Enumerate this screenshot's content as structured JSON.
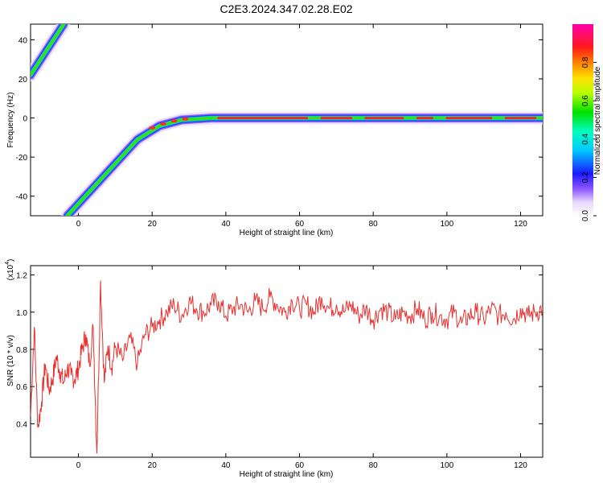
{
  "chart_data": [
    {
      "type": "heatmap",
      "title": "C2E3.2024.347.02.28.E02",
      "xlabel": "Height of straight line (km)",
      "ylabel": "Frequency (Hz)",
      "xlim": [
        -13,
        126
      ],
      "ylim": [
        -50,
        48
      ],
      "x_ticks": [
        "0",
        "20",
        "40",
        "60",
        "80",
        "100",
        "120"
      ],
      "y_ticks": [
        "-40",
        "-20",
        "0",
        "20",
        "40"
      ],
      "colorbar": {
        "label": "Normalized spectral amplitude",
        "range": [
          0,
          1
        ],
        "ticks": [
          "0.0",
          "0.2",
          "0.4",
          "0.6",
          "0.8"
        ]
      },
      "ridges": [
        {
          "name": "",
          "points": [
            [
              -13,
              22
            ],
            [
              -4,
              48
            ]
          ]
        },
        {
          "name": "",
          "points": [
            [
              -3,
              -50
            ],
            [
              16,
              -11
            ],
            [
              22,
              -4
            ],
            [
              28,
              -1
            ],
            [
              36,
              0
            ],
            [
              126,
              0
            ]
          ]
        }
      ]
    },
    {
      "type": "line",
      "xlabel": "Height of straight line (km)",
      "ylabel": "SNR (10 * v/v)",
      "exponent_label": "(x10",
      "exponent_sup": "4",
      "exponent_close": ")",
      "xlim": [
        -13,
        126
      ],
      "ylim": [
        0.22,
        1.25
      ],
      "x_ticks": [
        "0",
        "20",
        "40",
        "60",
        "80",
        "100",
        "120"
      ],
      "y_ticks": [
        "0.4",
        "0.6",
        "0.8",
        "1.0",
        "1.2"
      ],
      "color": "#e8302f",
      "x": [
        -13,
        -12,
        -11,
        -10,
        -9,
        -8,
        -7,
        -6,
        -5,
        -4,
        -3,
        -2,
        -1,
        0,
        1,
        2,
        3,
        4,
        5,
        6,
        7,
        8,
        9,
        10,
        12,
        14,
        16,
        18,
        20,
        22,
        24,
        26,
        28,
        30,
        32,
        34,
        36,
        38,
        40,
        42,
        44,
        46,
        48,
        50,
        52,
        54,
        56,
        58,
        60,
        62,
        64,
        66,
        68,
        70,
        72,
        74,
        76,
        78,
        80,
        82,
        84,
        86,
        88,
        90,
        92,
        94,
        96,
        98,
        100,
        102,
        104,
        106,
        108,
        110,
        112,
        114,
        116,
        118,
        120,
        122,
        124,
        126
      ],
      "y": [
        0.44,
        0.92,
        0.38,
        0.52,
        0.72,
        0.58,
        0.64,
        0.76,
        0.68,
        0.62,
        0.7,
        0.66,
        0.64,
        0.7,
        0.8,
        0.88,
        0.72,
        0.92,
        0.24,
        1.17,
        0.62,
        0.82,
        0.7,
        0.82,
        0.74,
        0.86,
        0.72,
        0.88,
        0.92,
        0.96,
        1.0,
        1.04,
        0.98,
        1.06,
        1.02,
        1.0,
        1.04,
        1.06,
        0.98,
        1.02,
        1.04,
        1.0,
        1.06,
        1.02,
        1.08,
        1.04,
        1.0,
        1.06,
        1.02,
        1.04,
        1.0,
        1.08,
        1.02,
        1.04,
        1.0,
        1.04,
        0.98,
        1.02,
        0.96,
        1.02,
        1.0,
        0.96,
        1.0,
        0.98,
        1.02,
        0.96,
        1.0,
        0.98,
        0.96,
        1.0,
        0.94,
        0.98,
        1.0,
        0.96,
        1.02,
        0.98,
        1.0,
        0.96,
        1.02,
        0.98,
        1.0,
        1.02
      ]
    }
  ]
}
